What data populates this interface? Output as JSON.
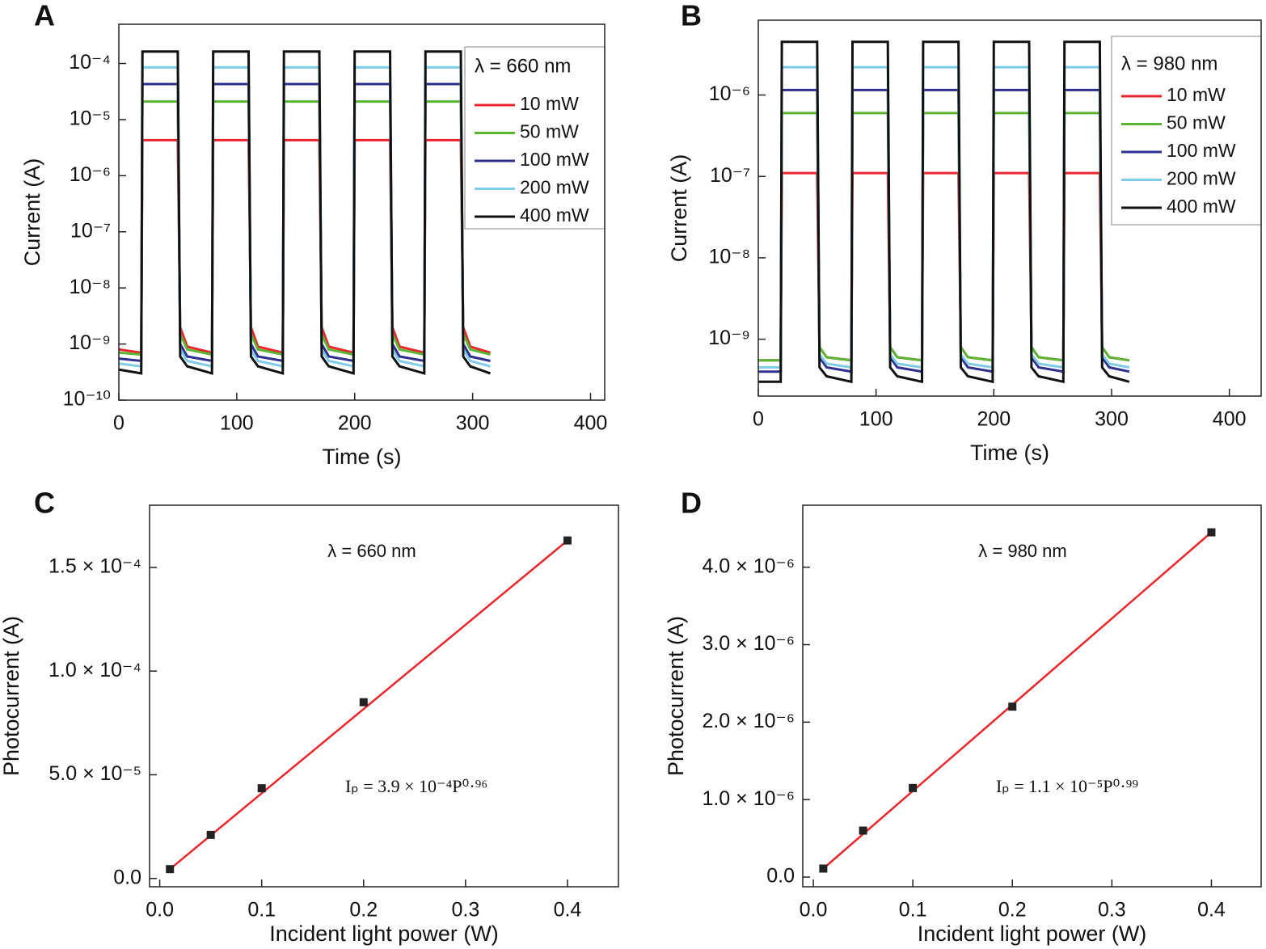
{
  "chart_data": [
    {
      "type": "line",
      "panel": "A",
      "log_y": true,
      "xlabel": "Time (s)",
      "ylabel": "Current (A)",
      "legend_title": "λ = 660 nm",
      "xlim": [
        0,
        412
      ],
      "xticks": [
        0,
        100,
        200,
        300,
        400
      ],
      "ylim": [
        1e-10,
        0.0005
      ],
      "yticks": [
        {
          "value": 1e-10,
          "label": "10⁻¹⁰"
        },
        {
          "value": 1e-09,
          "label": "10⁻⁹"
        },
        {
          "value": 1e-08,
          "label": "10⁻⁸"
        },
        {
          "value": 1e-07,
          "label": "10⁻⁷"
        },
        {
          "value": 1e-06,
          "label": "10⁻⁶"
        },
        {
          "value": 1e-05,
          "label": "10⁻⁵"
        },
        {
          "value": 0.0001,
          "label": "10⁻⁴"
        }
      ],
      "x": [
        0,
        19,
        20,
        50,
        52,
        58,
        79,
        80,
        110,
        112,
        118,
        139,
        140,
        170,
        172,
        178,
        199,
        200,
        230,
        232,
        238,
        259,
        260,
        290,
        292,
        298,
        315
      ],
      "series": [
        {
          "name": "10 mW",
          "color": "#e8262b",
          "values": [
            8e-10,
            7e-10,
            4.3e-06,
            4.3e-06,
            2e-09,
            9e-10,
            7e-10,
            4.3e-06,
            4.3e-06,
            2e-09,
            9e-10,
            7e-10,
            4.3e-06,
            4.3e-06,
            2e-09,
            9e-10,
            7e-10,
            4.3e-06,
            4.3e-06,
            2e-09,
            9e-10,
            7e-10,
            4.3e-06,
            4.3e-06,
            2e-09,
            9e-10,
            7e-10
          ]
        },
        {
          "name": "50 mW",
          "color": "#5bb534",
          "values": [
            7e-10,
            6.5e-10,
            2.1e-05,
            2.1e-05,
            1.5e-09,
            8e-10,
            6.5e-10,
            2.1e-05,
            2.1e-05,
            1.5e-09,
            8e-10,
            6.5e-10,
            2.1e-05,
            2.1e-05,
            1.5e-09,
            8e-10,
            6.5e-10,
            2.1e-05,
            2.1e-05,
            1.5e-09,
            8e-10,
            6.5e-10,
            2.1e-05,
            2.1e-05,
            1.5e-09,
            8e-10,
            6.5e-10
          ]
        },
        {
          "name": "100 mW",
          "color": "#2e2f8f",
          "values": [
            5.5e-10,
            5e-10,
            4.3e-05,
            4.3e-05,
            1e-09,
            6e-10,
            5e-10,
            4.3e-05,
            4.3e-05,
            1e-09,
            6e-10,
            5e-10,
            4.3e-05,
            4.3e-05,
            1e-09,
            6e-10,
            5e-10,
            4.3e-05,
            4.3e-05,
            1e-09,
            6e-10,
            5e-10,
            4.3e-05,
            4.3e-05,
            1e-09,
            6e-10,
            5e-10
          ]
        },
        {
          "name": "200 mW",
          "color": "#7fcbe8",
          "values": [
            4.5e-10,
            4e-10,
            8.5e-05,
            8.5e-05,
            8e-10,
            5e-10,
            4e-10,
            8.5e-05,
            8.5e-05,
            8e-10,
            5e-10,
            4e-10,
            8.5e-05,
            8.5e-05,
            8e-10,
            5e-10,
            4e-10,
            8.5e-05,
            8.5e-05,
            8e-10,
            5e-10,
            4e-10,
            8.5e-05,
            8.5e-05,
            8e-10,
            5e-10,
            4e-10
          ]
        },
        {
          "name": "400 mW",
          "color": "#111111",
          "values": [
            3.5e-10,
            3e-10,
            0.000163,
            0.000163,
            6e-10,
            4e-10,
            3e-10,
            0.000163,
            0.000163,
            6e-10,
            4e-10,
            3e-10,
            0.000163,
            0.000163,
            6e-10,
            4e-10,
            3e-10,
            0.000163,
            0.000163,
            6e-10,
            4e-10,
            3e-10,
            0.000163,
            0.000163,
            6e-10,
            4e-10,
            3e-10
          ]
        }
      ]
    },
    {
      "type": "line",
      "panel": "B",
      "log_y": true,
      "xlabel": "Time (s)",
      "ylabel": "Current (A)",
      "legend_title": "λ = 980 nm",
      "xlim": [
        0,
        427
      ],
      "xticks": [
        0,
        100,
        200,
        300,
        400
      ],
      "ylim": [
        2e-10,
        8.3e-06
      ],
      "yticks": [
        {
          "value": 1e-09,
          "label": "10⁻⁹"
        },
        {
          "value": 1e-08,
          "label": "10⁻⁸"
        },
        {
          "value": 1e-07,
          "label": "10⁻⁷"
        },
        {
          "value": 1e-06,
          "label": "10⁻⁶"
        }
      ],
      "x": [
        0,
        19,
        20,
        50,
        52,
        58,
        79,
        80,
        110,
        112,
        118,
        139,
        140,
        170,
        172,
        178,
        199,
        200,
        230,
        232,
        238,
        259,
        260,
        290,
        292,
        298,
        315
      ],
      "series": [
        {
          "name": "10 mW",
          "color": "#e8262b",
          "values": [
            5.5e-10,
            5.5e-10,
            1.1e-07,
            1.1e-07,
            8e-10,
            6e-10,
            5.5e-10,
            1.1e-07,
            1.1e-07,
            8e-10,
            6e-10,
            5.5e-10,
            1.1e-07,
            1.1e-07,
            8e-10,
            6e-10,
            5.5e-10,
            1.1e-07,
            1.1e-07,
            8e-10,
            6e-10,
            5.5e-10,
            1.1e-07,
            1.1e-07,
            8e-10,
            6e-10,
            5.5e-10
          ]
        },
        {
          "name": "50 mW",
          "color": "#5bb534",
          "values": [
            5.5e-10,
            5.5e-10,
            6e-07,
            6e-07,
            8e-10,
            6e-10,
            5.5e-10,
            6e-07,
            6e-07,
            8e-10,
            6e-10,
            5.5e-10,
            6e-07,
            6e-07,
            8e-10,
            6e-10,
            5.5e-10,
            6e-07,
            6e-07,
            8e-10,
            6e-10,
            5.5e-10,
            6e-07,
            6e-07,
            8e-10,
            6e-10,
            5.5e-10
          ]
        },
        {
          "name": "100 mW",
          "color": "#2e2f8f",
          "values": [
            4e-10,
            4e-10,
            1.15e-06,
            1.15e-06,
            6e-10,
            4.5e-10,
            4e-10,
            1.15e-06,
            1.15e-06,
            6e-10,
            4.5e-10,
            4e-10,
            1.15e-06,
            1.15e-06,
            6e-10,
            4.5e-10,
            4e-10,
            1.15e-06,
            1.15e-06,
            6e-10,
            4.5e-10,
            4e-10,
            1.15e-06,
            1.15e-06,
            6e-10,
            4.5e-10,
            4e-10
          ]
        },
        {
          "name": "200 mW",
          "color": "#7fcbe8",
          "values": [
            4.5e-10,
            4.5e-10,
            2.2e-06,
            2.2e-06,
            6.5e-10,
            5e-10,
            4.5e-10,
            2.2e-06,
            2.2e-06,
            6.5e-10,
            5e-10,
            4.5e-10,
            2.2e-06,
            2.2e-06,
            6.5e-10,
            5e-10,
            4.5e-10,
            2.2e-06,
            2.2e-06,
            6.5e-10,
            5e-10,
            4.5e-10,
            2.2e-06,
            2.2e-06,
            6.5e-10,
            5e-10,
            4.5e-10
          ]
        },
        {
          "name": "400 mW",
          "color": "#111111",
          "values": [
            3e-10,
            3e-10,
            4.5e-06,
            4.5e-06,
            4.5e-10,
            3.5e-10,
            3e-10,
            4.5e-06,
            4.5e-06,
            4.5e-10,
            3.5e-10,
            3e-10,
            4.5e-06,
            4.5e-06,
            4.5e-10,
            3.5e-10,
            3e-10,
            4.5e-06,
            4.5e-06,
            4.5e-10,
            3.5e-10,
            3e-10,
            4.5e-06,
            4.5e-06,
            4.5e-10,
            3.5e-10,
            3e-10
          ]
        }
      ]
    },
    {
      "type": "scatter",
      "panel": "C",
      "xlabel": "Incident light power (W)",
      "ylabel": "Photocurrent (A)",
      "annotations": [
        "λ = 660 nm",
        "Iₚ = 3.9 × 10⁻⁴P⁰·⁹⁶"
      ],
      "xlim": [
        -0.01,
        0.45
      ],
      "xticks": [
        {
          "value": 0,
          "label": "0.0"
        },
        0.1,
        0.2,
        0.3,
        0.4
      ],
      "ylim": [
        -4e-06,
        0.00018
      ],
      "yticks": [
        {
          "value": 0,
          "label": "0.0"
        },
        {
          "value": 5e-05,
          "label": "5.0 × 10⁻⁵"
        },
        {
          "value": 0.0001,
          "label": "1.0 × 10⁻⁴"
        },
        {
          "value": 0.00015,
          "label": "1.5 × 10⁻⁴"
        }
      ],
      "x": [
        0.01,
        0.05,
        0.1,
        0.2,
        0.4
      ],
      "values": [
        4.5e-06,
        2.1e-05,
        4.35e-05,
        8.5e-05,
        0.000163
      ],
      "color": "#222222",
      "fit": {
        "x": [
          0.01,
          0.4
        ],
        "values": [
          4.5e-06,
          0.000163
        ],
        "color": "#e8262b"
      }
    },
    {
      "type": "scatter",
      "panel": "D",
      "xlabel": "Incident light power (W)",
      "ylabel": "Photocurrent (A)",
      "annotations": [
        "λ = 980 nm",
        "Iₚ = 1.1 × 10⁻⁵P⁰·⁹⁹"
      ],
      "xlim": [
        -0.0106,
        0.45
      ],
      "xticks": [
        {
          "value": 0,
          "label": "0.0"
        },
        0.1,
        0.2,
        0.3,
        0.4
      ],
      "ylim": [
        -1.25e-07,
        4.8e-06
      ],
      "yticks": [
        {
          "value": 0,
          "label": "0.0"
        },
        {
          "value": 1e-06,
          "label": "1.0 × 10⁻⁶"
        },
        {
          "value": 2e-06,
          "label": "2.0 × 10⁻⁶"
        },
        {
          "value": 3e-06,
          "label": "3.0 × 10⁻⁶"
        },
        {
          "value": 4e-06,
          "label": "4.0 × 10⁻⁶"
        }
      ],
      "x": [
        0.01,
        0.05,
        0.1,
        0.2,
        0.4
      ],
      "values": [
        1.1e-07,
        6e-07,
        1.15e-06,
        2.2e-06,
        4.45e-06
      ],
      "color": "#222222",
      "fit": {
        "x": [
          0.01,
          0.4
        ],
        "values": [
          1.1e-07,
          4.45e-06
        ],
        "color": "#e8262b"
      }
    }
  ]
}
